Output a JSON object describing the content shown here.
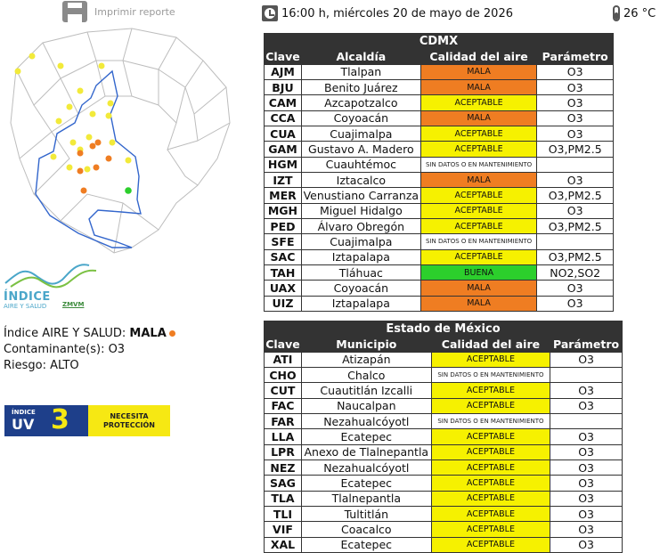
{
  "header": {
    "print_label": "Imprimir reporte",
    "datetime": "16:00 h, miércoles 20 de mayo de 2026",
    "temperature": "26 °C"
  },
  "logo": {
    "main": "ÍNDICE",
    "sub": "AIRE Y SALUD",
    "org": "ZMVM"
  },
  "summary": {
    "index_label": "Índice AIRE Y SALUD: ",
    "index_value": "MALA",
    "pollutant_label": "Contaminante(s): ",
    "pollutant_value": "O3",
    "risk_label": "Riesgo: ",
    "risk_value": "ALTO",
    "dot_color": "#ef7d22"
  },
  "uv": {
    "index_label": "ÍNDICE",
    "uv_label": "UV",
    "value": "3",
    "message": "NECESITA PROTECCIÓN"
  },
  "colors": {
    "MALA": "#ef7d22",
    "ACEPTABLE": "#f6f100",
    "BUENA": "#2ccf2c"
  },
  "cdmx": {
    "title": "CDMX",
    "headers": [
      "Clave",
      "Alcaldía",
      "Calidad del aire",
      "Parámetro"
    ],
    "rows": [
      [
        "AJM",
        "Tlalpan",
        "MALA",
        "O3"
      ],
      [
        "BJU",
        "Benito Juárez",
        "MALA",
        "O3"
      ],
      [
        "CAM",
        "Azcapotzalco",
        "ACEPTABLE",
        "O3"
      ],
      [
        "CCA",
        "Coyoacán",
        "MALA",
        "O3"
      ],
      [
        "CUA",
        "Cuajimalpa",
        "ACEPTABLE",
        "O3"
      ],
      [
        "GAM",
        "Gustavo A. Madero",
        "ACEPTABLE",
        "O3,PM2.5"
      ],
      [
        "HGM",
        "Cuauhtémoc",
        "SIN DATOS O EN MANTENIMIENTO",
        ""
      ],
      [
        "IZT",
        "Iztacalco",
        "MALA",
        "O3"
      ],
      [
        "MER",
        "Venustiano Carranza",
        "ACEPTABLE",
        "O3,PM2.5"
      ],
      [
        "MGH",
        "Miguel Hidalgo",
        "ACEPTABLE",
        "O3"
      ],
      [
        "PED",
        "Álvaro Obregón",
        "ACEPTABLE",
        "O3,PM2.5"
      ],
      [
        "SFE",
        "Cuajimalpa",
        "SIN DATOS O EN MANTENIMIENTO",
        ""
      ],
      [
        "SAC",
        "Iztapalapa",
        "ACEPTABLE",
        "O3,PM2.5"
      ],
      [
        "TAH",
        "Tláhuac",
        "BUENA",
        "NO2,SO2"
      ],
      [
        "UAX",
        "Coyoacán",
        "MALA",
        "O3"
      ],
      [
        "UIZ",
        "Iztapalapa",
        "MALA",
        "O3"
      ]
    ]
  },
  "edomex": {
    "title": "Estado de México",
    "headers": [
      "Clave",
      "Municipio",
      "Calidad del aire",
      "Parámetro"
    ],
    "rows": [
      [
        "ATI",
        "Atizapán",
        "ACEPTABLE",
        "O3"
      ],
      [
        "CHO",
        "Chalco",
        "SIN DATOS O EN MANTENIMIENTO",
        ""
      ],
      [
        "CUT",
        "Cuautitlán Izcalli",
        "ACEPTABLE",
        "O3"
      ],
      [
        "FAC",
        "Naucalpan",
        "ACEPTABLE",
        "O3"
      ],
      [
        "FAR",
        "Nezahualcóyotl",
        "SIN DATOS O EN MANTENIMIENTO",
        ""
      ],
      [
        "LLA",
        "Ecatepec",
        "ACEPTABLE",
        "O3"
      ],
      [
        "LPR",
        "Anexo de Tlalnepantla",
        "ACEPTABLE",
        "O3"
      ],
      [
        "NEZ",
        "Nezahualcóyotl",
        "ACEPTABLE",
        "O3"
      ],
      [
        "SAG",
        "Ecatepec",
        "ACEPTABLE",
        "O3"
      ],
      [
        "TLA",
        "Tlalnepantla",
        "ACEPTABLE",
        "O3"
      ],
      [
        "TLI",
        "Tultitlán",
        "ACEPTABLE",
        "O3"
      ],
      [
        "VIF",
        "Coacalco",
        "ACEPTABLE",
        "O3"
      ],
      [
        "XAL",
        "Ecatepec",
        "ACEPTABLE",
        "O3"
      ]
    ]
  }
}
